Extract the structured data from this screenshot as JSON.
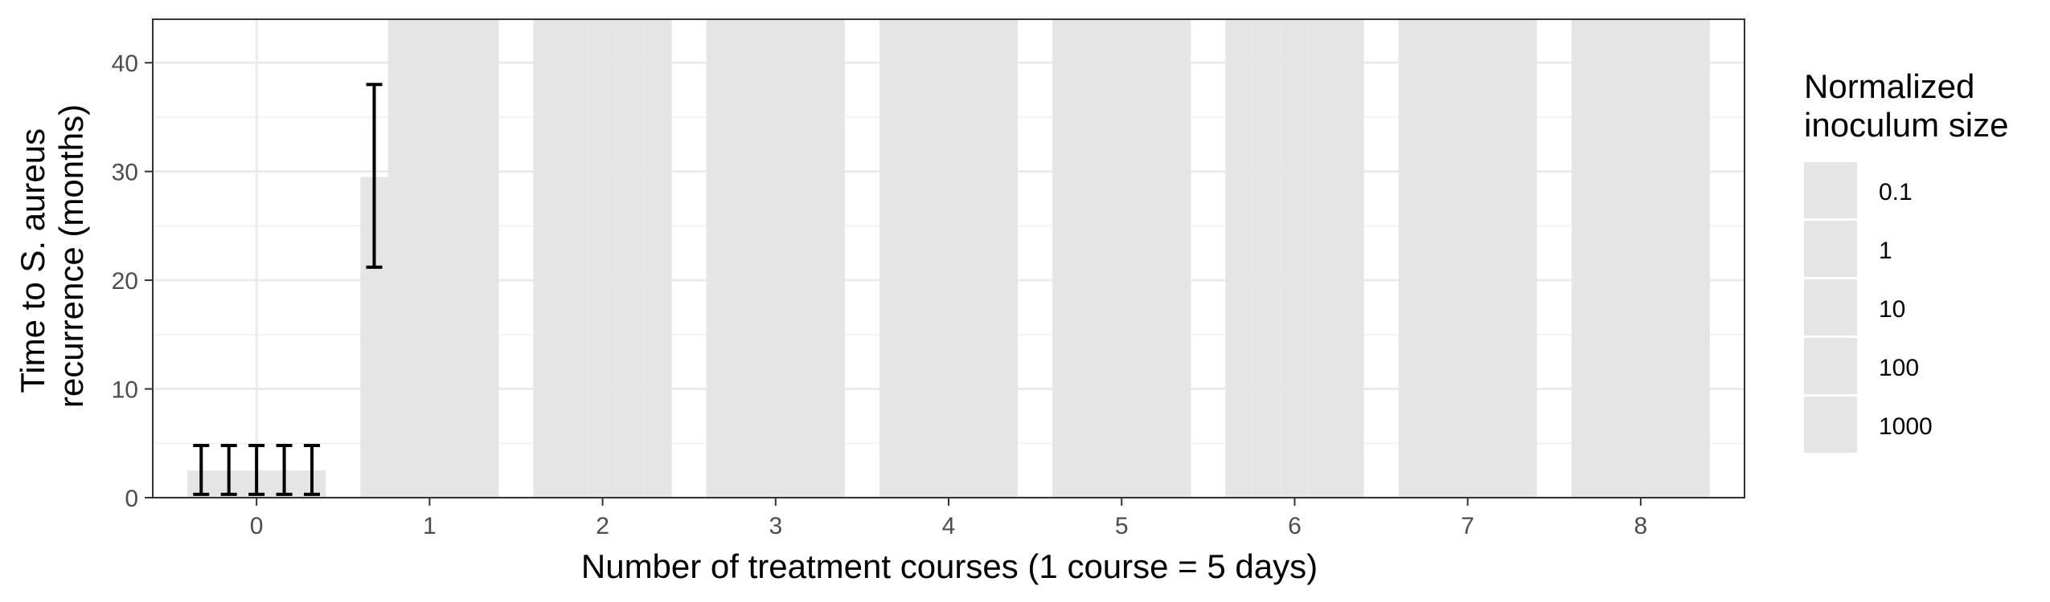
{
  "chart_data": {
    "type": "bar",
    "categories": [
      "0",
      "1",
      "2",
      "3",
      "4",
      "5",
      "6",
      "7",
      "8"
    ],
    "xlabel": "Number of treatment courses (1 course = 5 days)",
    "ylabel_lines": [
      "Time to S. aureus",
      "recurrence (months)"
    ],
    "ylim": [
      0,
      44
    ],
    "yticks": [
      0,
      10,
      20,
      30,
      40
    ],
    "grid": true,
    "legend": {
      "title_lines": [
        "Normalized",
        "inoculum size"
      ],
      "placement": "right",
      "entries": [
        "0.1",
        "1",
        "10",
        "100",
        "1000"
      ]
    },
    "bar_color": "#e5e5e5",
    "series": [
      {
        "name": "0.1",
        "values": [
          2.5,
          29.5,
          44,
          44,
          44,
          44,
          44,
          44,
          44
        ],
        "error_low": [
          0.3,
          21.2,
          null,
          null,
          null,
          null,
          null,
          null,
          null
        ],
        "error_high": [
          4.8,
          38.0,
          null,
          null,
          null,
          null,
          null,
          null,
          null
        ]
      },
      {
        "name": "1",
        "values": [
          2.5,
          44,
          44,
          44,
          44,
          44,
          44,
          44,
          44
        ],
        "error_low": [
          0.3,
          null,
          null,
          null,
          null,
          null,
          null,
          null,
          null
        ],
        "error_high": [
          4.8,
          null,
          null,
          null,
          null,
          null,
          null,
          null,
          null
        ]
      },
      {
        "name": "10",
        "values": [
          2.5,
          44,
          44,
          44,
          44,
          44,
          44,
          44,
          44
        ],
        "error_low": [
          0.3,
          null,
          null,
          null,
          null,
          null,
          null,
          null,
          null
        ],
        "error_high": [
          4.8,
          null,
          null,
          null,
          null,
          null,
          null,
          null,
          null
        ]
      },
      {
        "name": "100",
        "values": [
          2.5,
          44,
          44,
          44,
          44,
          44,
          44,
          44,
          44
        ],
        "error_low": [
          0.3,
          null,
          null,
          null,
          null,
          null,
          null,
          null,
          null
        ],
        "error_high": [
          4.8,
          null,
          null,
          null,
          null,
          null,
          null,
          null,
          null
        ]
      },
      {
        "name": "1000",
        "values": [
          2.5,
          44,
          44,
          44,
          44,
          44,
          44,
          44,
          44
        ],
        "error_low": [
          0.3,
          null,
          null,
          null,
          null,
          null,
          null,
          null,
          null
        ],
        "error_high": [
          4.8,
          null,
          null,
          null,
          null,
          null,
          null,
          null,
          null
        ]
      }
    ]
  }
}
